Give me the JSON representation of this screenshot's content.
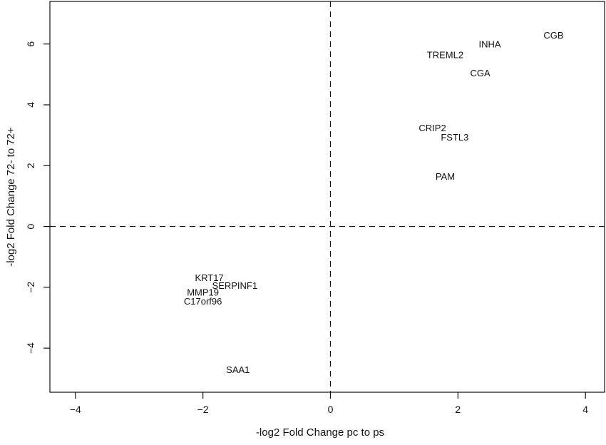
{
  "chart_data": {
    "type": "scatter",
    "title": "",
    "xlabel": "-log2 Fold Change pc to ps",
    "ylabel": "-log2 Fold Change 72- to 72+",
    "xlim": [
      -4.4,
      4.3
    ],
    "ylim": [
      -5.45,
      7.4
    ],
    "xticks": [
      -4,
      -2,
      0,
      2,
      4
    ],
    "yticks": [
      -4,
      -2,
      0,
      2,
      4,
      6
    ],
    "xtick_labels": [
      "−4",
      "−2",
      "0",
      "2",
      "4"
    ],
    "ytick_labels": [
      "−4",
      "−2",
      "0",
      "2",
      "4",
      "6"
    ],
    "reference_lines": {
      "x": 0,
      "y": 0,
      "style": "dashed"
    },
    "grid": false,
    "legend": "none",
    "points": [
      {
        "label": "CGB",
        "x": 3.5,
        "y": 6.3
      },
      {
        "label": "INHA",
        "x": 2.5,
        "y": 6.0
      },
      {
        "label": "TREML2",
        "x": 1.8,
        "y": 5.65
      },
      {
        "label": "CGA",
        "x": 2.35,
        "y": 5.05
      },
      {
        "label": "CRIP2",
        "x": 1.6,
        "y": 3.25
      },
      {
        "label": "FSTL3",
        "x": 1.95,
        "y": 2.95
      },
      {
        "label": "PAM",
        "x": 1.8,
        "y": 1.65
      },
      {
        "label": "KRT17",
        "x": -1.9,
        "y": -1.67
      },
      {
        "label": "SERPINF1",
        "x": -1.5,
        "y": -1.93
      },
      {
        "label": "MMP19",
        "x": -2.0,
        "y": -2.15
      },
      {
        "label": "C17orf96",
        "x": -2.0,
        "y": -2.45
      },
      {
        "label": "SAA1",
        "x": -1.45,
        "y": -4.7
      }
    ]
  }
}
